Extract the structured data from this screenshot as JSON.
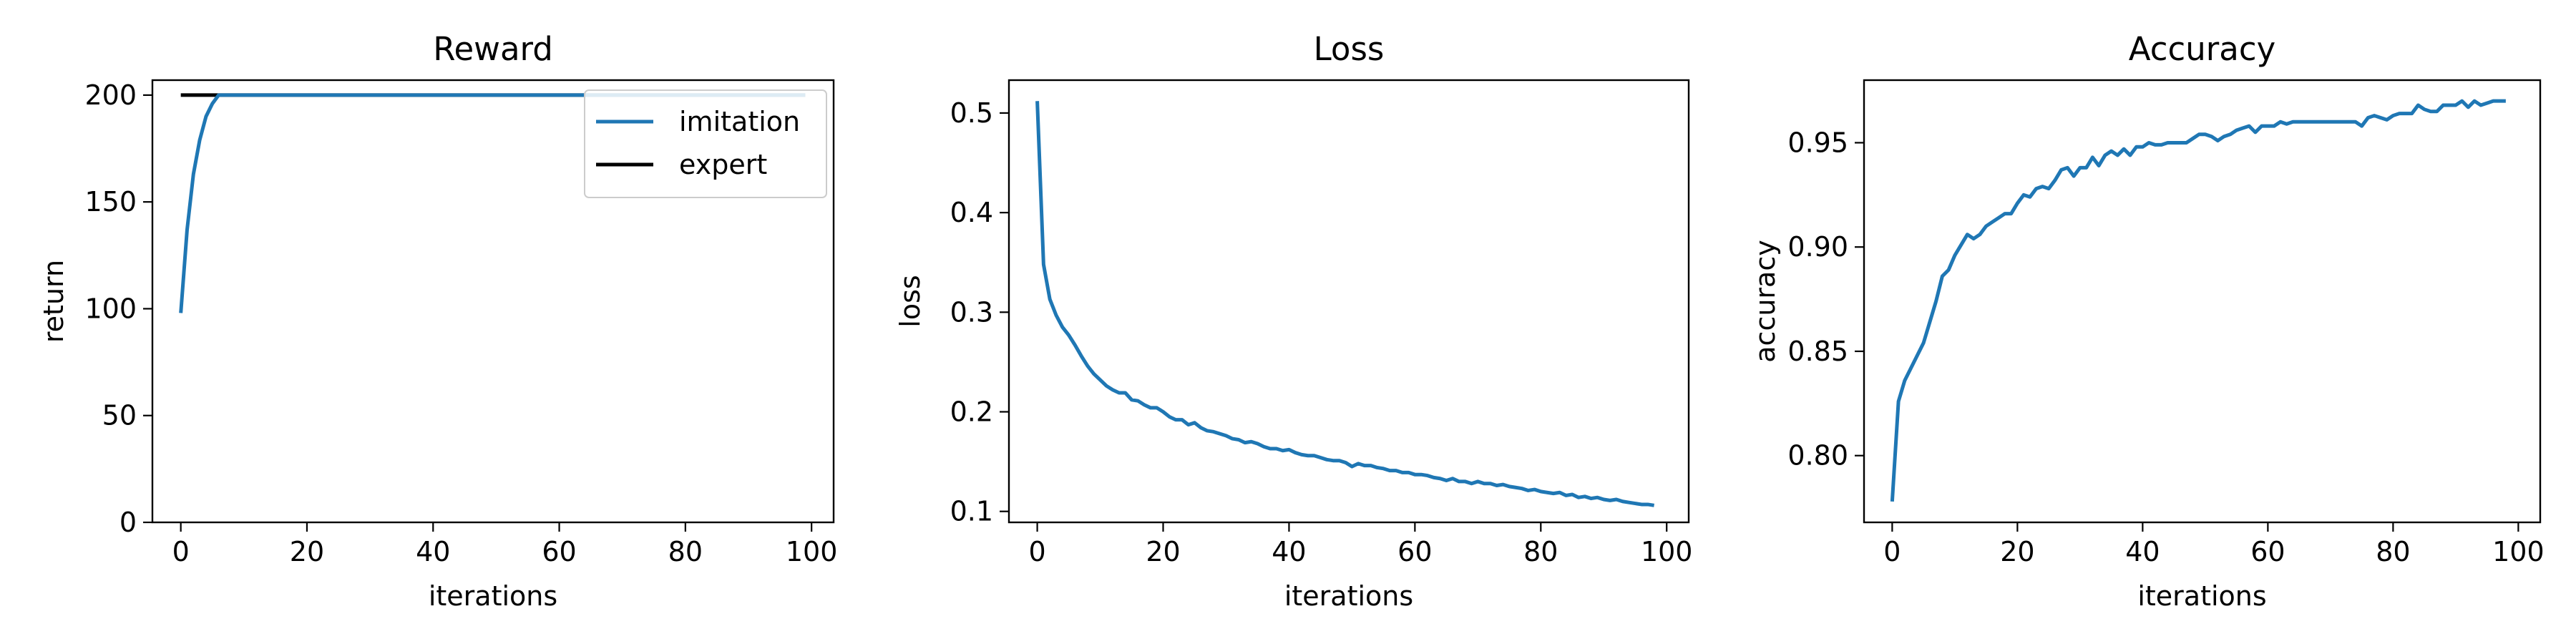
{
  "chart_data": [
    {
      "type": "line",
      "title": "Reward",
      "xlabel": "iterations",
      "ylabel": "return",
      "xlim": [
        -4.5,
        103.5
      ],
      "ylim": [
        0,
        207
      ],
      "xticks": [
        0,
        20,
        40,
        60,
        80,
        100
      ],
      "yticks": [
        0,
        50,
        100,
        150,
        200
      ],
      "ytick_labels": [
        "0",
        "50",
        "100",
        "150",
        "200"
      ],
      "legend": "top-right",
      "series": [
        {
          "name": "imitation",
          "color": "#1f77b4",
          "x": [
            0,
            1,
            2,
            3,
            4,
            5,
            6,
            7,
            8,
            9,
            10,
            11,
            12,
            13,
            14,
            15,
            16,
            17,
            18,
            19,
            20,
            21,
            22,
            23,
            24,
            25,
            26,
            27,
            28,
            29,
            30,
            31,
            32,
            33,
            34,
            35,
            36,
            37,
            38,
            39,
            40,
            41,
            42,
            43,
            44,
            45,
            46,
            47,
            48,
            49,
            50,
            51,
            52,
            53,
            54,
            55,
            56,
            57,
            58,
            59,
            60,
            61,
            62,
            63,
            64,
            65,
            66,
            67,
            68,
            69,
            70,
            71,
            72,
            73,
            74,
            75,
            76,
            77,
            78,
            79,
            80,
            81,
            82,
            83,
            84,
            85,
            86,
            87,
            88,
            89,
            90,
            91,
            92,
            93,
            94,
            95,
            96,
            97,
            98,
            99
          ],
          "y": [
            98,
            137,
            163,
            179,
            190,
            196,
            200,
            200,
            200,
            200,
            200,
            200,
            200,
            200,
            200,
            200,
            200,
            200,
            200,
            200,
            200,
            200,
            200,
            200,
            200,
            200,
            200,
            200,
            200,
            200,
            200,
            200,
            200,
            200,
            200,
            200,
            200,
            200,
            200,
            200,
            200,
            200,
            200,
            200,
            200,
            200,
            200,
            200,
            200,
            200,
            200,
            200,
            200,
            200,
            200,
            200,
            200,
            200,
            200,
            200,
            200,
            200,
            200,
            200,
            200,
            200,
            200,
            200,
            200,
            200,
            200,
            200,
            200,
            200,
            200,
            200,
            200,
            200,
            200,
            200,
            200,
            200,
            200,
            200,
            200,
            200,
            200,
            200,
            200,
            200,
            200,
            200,
            200,
            200,
            200,
            200,
            200,
            200,
            200,
            200
          ]
        },
        {
          "name": "expert",
          "color": "#000000",
          "x": [
            0,
            99
          ],
          "y": [
            200,
            200
          ]
        }
      ]
    },
    {
      "type": "line",
      "title": "Loss",
      "xlabel": "iterations",
      "ylabel": "loss",
      "xlim": [
        -4.5,
        103.5
      ],
      "ylim": [
        0.089,
        0.533
      ],
      "xticks": [
        0,
        20,
        40,
        60,
        80,
        100
      ],
      "yticks": [
        0.1,
        0.2,
        0.3,
        0.4,
        0.5
      ],
      "ytick_labels": [
        "0.1",
        "0.2",
        "0.3",
        "0.4",
        "0.5"
      ],
      "legend": "none",
      "series": [
        {
          "color": "#1f77b4",
          "x": [
            0,
            1,
            2,
            3,
            4,
            5,
            6,
            7,
            8,
            9,
            10,
            11,
            12,
            13,
            14,
            15,
            16,
            17,
            18,
            19,
            20,
            21,
            22,
            23,
            24,
            25,
            26,
            27,
            28,
            29,
            30,
            31,
            32,
            33,
            34,
            35,
            36,
            37,
            38,
            39,
            40,
            41,
            42,
            43,
            44,
            45,
            46,
            47,
            48,
            49,
            50,
            51,
            52,
            53,
            54,
            55,
            56,
            57,
            58,
            59,
            60,
            61,
            62,
            63,
            64,
            65,
            66,
            67,
            68,
            69,
            70,
            71,
            72,
            73,
            74,
            75,
            76,
            77,
            78,
            79,
            80,
            81,
            82,
            83,
            84,
            85,
            86,
            87,
            88,
            89,
            90,
            91,
            92,
            93,
            94,
            95,
            96,
            97,
            98
          ],
          "y": [
            0.512,
            0.348,
            0.313,
            0.297,
            0.285,
            0.277,
            0.267,
            0.256,
            0.246,
            0.238,
            0.232,
            0.226,
            0.222,
            0.219,
            0.219,
            0.212,
            0.211,
            0.207,
            0.204,
            0.204,
            0.2,
            0.195,
            0.192,
            0.192,
            0.187,
            0.189,
            0.184,
            0.181,
            0.18,
            0.178,
            0.176,
            0.173,
            0.172,
            0.169,
            0.17,
            0.168,
            0.165,
            0.163,
            0.163,
            0.161,
            0.162,
            0.159,
            0.157,
            0.156,
            0.156,
            0.154,
            0.152,
            0.151,
            0.151,
            0.149,
            0.145,
            0.148,
            0.146,
            0.146,
            0.144,
            0.143,
            0.141,
            0.141,
            0.139,
            0.139,
            0.137,
            0.137,
            0.136,
            0.134,
            0.133,
            0.131,
            0.133,
            0.13,
            0.13,
            0.128,
            0.13,
            0.128,
            0.128,
            0.126,
            0.127,
            0.125,
            0.124,
            0.123,
            0.121,
            0.122,
            0.12,
            0.119,
            0.118,
            0.119,
            0.116,
            0.117,
            0.114,
            0.115,
            0.113,
            0.114,
            0.112,
            0.111,
            0.112,
            0.11,
            0.109,
            0.108,
            0.107,
            0.107,
            0.106
          ]
        }
      ]
    },
    {
      "type": "line",
      "title": "Accuracy",
      "xlabel": "iterations",
      "ylabel": "accuracy",
      "xlim": [
        -4.5,
        103.5
      ],
      "ylim": [
        0.768,
        0.98
      ],
      "xticks": [
        0,
        20,
        40,
        60,
        80,
        100
      ],
      "yticks": [
        0.8,
        0.85,
        0.9,
        0.95
      ],
      "ytick_labels": [
        "0.80",
        "0.85",
        "0.90",
        "0.95"
      ],
      "legend": "none",
      "series": [
        {
          "color": "#1f77b4",
          "x": [
            0,
            1,
            2,
            3,
            4,
            5,
            6,
            7,
            8,
            9,
            10,
            11,
            12,
            13,
            14,
            15,
            16,
            17,
            18,
            19,
            20,
            21,
            22,
            23,
            24,
            25,
            26,
            27,
            28,
            29,
            30,
            31,
            32,
            33,
            34,
            35,
            36,
            37,
            38,
            39,
            40,
            41,
            42,
            43,
            44,
            45,
            46,
            47,
            48,
            49,
            50,
            51,
            52,
            53,
            54,
            55,
            56,
            57,
            58,
            59,
            60,
            61,
            62,
            63,
            64,
            65,
            66,
            67,
            68,
            69,
            70,
            71,
            72,
            73,
            74,
            75,
            76,
            77,
            78,
            79,
            80,
            81,
            82,
            83,
            84,
            85,
            86,
            87,
            88,
            89,
            90,
            91,
            92,
            93,
            94,
            95,
            96,
            97,
            98
          ],
          "y": [
            0.778,
            0.826,
            0.836,
            0.842,
            0.848,
            0.854,
            0.864,
            0.874,
            0.886,
            0.889,
            0.896,
            0.901,
            0.906,
            0.904,
            0.906,
            0.91,
            0.912,
            0.914,
            0.916,
            0.916,
            0.921,
            0.925,
            0.924,
            0.928,
            0.929,
            0.928,
            0.932,
            0.937,
            0.938,
            0.934,
            0.938,
            0.938,
            0.943,
            0.939,
            0.944,
            0.946,
            0.944,
            0.947,
            0.944,
            0.948,
            0.948,
            0.95,
            0.949,
            0.949,
            0.95,
            0.95,
            0.95,
            0.95,
            0.952,
            0.954,
            0.954,
            0.953,
            0.951,
            0.953,
            0.954,
            0.956,
            0.957,
            0.958,
            0.955,
            0.958,
            0.958,
            0.958,
            0.96,
            0.959,
            0.96,
            0.96,
            0.96,
            0.96,
            0.96,
            0.96,
            0.96,
            0.96,
            0.96,
            0.96,
            0.96,
            0.958,
            0.962,
            0.963,
            0.962,
            0.961,
            0.963,
            0.964,
            0.964,
            0.964,
            0.968,
            0.966,
            0.965,
            0.965,
            0.968,
            0.968,
            0.968,
            0.97,
            0.967,
            0.97,
            0.968,
            0.969,
            0.97,
            0.97,
            0.97
          ]
        }
      ]
    }
  ]
}
